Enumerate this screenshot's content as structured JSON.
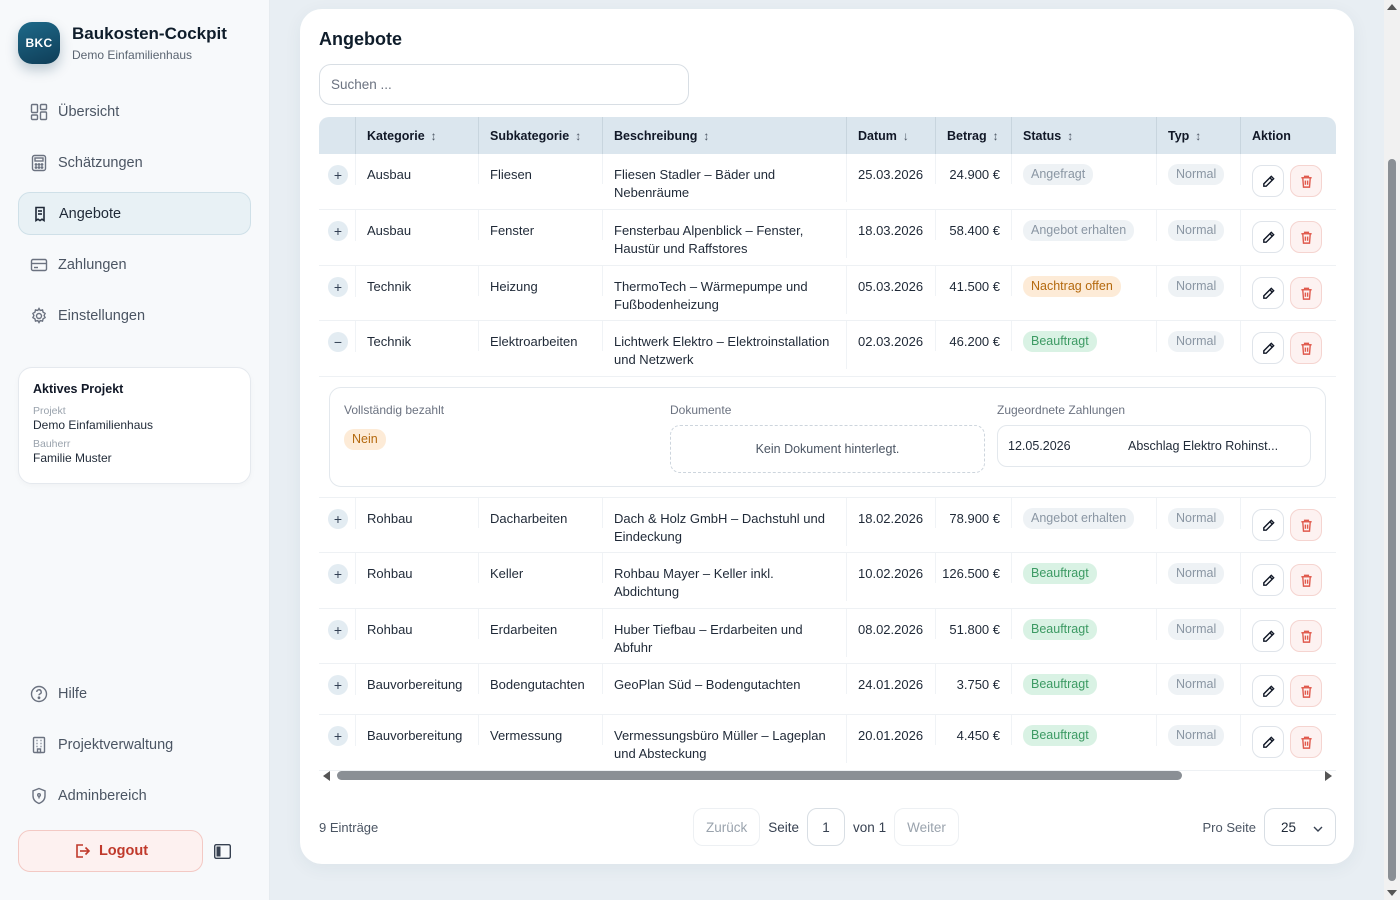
{
  "brand": {
    "logo": "BKC",
    "title": "Baukosten-Cockpit",
    "subtitle": "Demo Einfamilienhaus"
  },
  "nav": {
    "items": [
      {
        "label": "Übersicht",
        "icon": "dashboard-icon"
      },
      {
        "label": "Schätzungen",
        "icon": "calculator-icon"
      },
      {
        "label": "Angebote",
        "icon": "receipt-icon",
        "active": true
      },
      {
        "label": "Zahlungen",
        "icon": "card-icon"
      },
      {
        "label": "Einstellungen",
        "icon": "gear-icon"
      }
    ],
    "bottom": [
      {
        "label": "Hilfe",
        "icon": "help-icon"
      },
      {
        "label": "Projektverwaltung",
        "icon": "building-icon"
      },
      {
        "label": "Adminbereich",
        "icon": "shield-icon"
      }
    ],
    "logout": "Logout"
  },
  "project": {
    "title": "Aktives Projekt",
    "project_label": "Projekt",
    "project_value": "Demo Einfamilienhaus",
    "owner_label": "Bauherr",
    "owner_value": "Familie Muster"
  },
  "page": {
    "title": "Angebote",
    "search_placeholder": "Suchen ..."
  },
  "table": {
    "headers": [
      "Kategorie",
      "Subkategorie",
      "Beschreibung",
      "Datum",
      "Betrag",
      "Status",
      "Typ",
      "Aktion"
    ],
    "rows_before": [
      {
        "kategorie": "Ausbau",
        "sub": "Fliesen",
        "desc1": "Fliesen Stadler – Bäder und",
        "desc2": "Nebenräume",
        "datum": "25.03.2026",
        "betrag": "24.900 €",
        "status": "Angefragt",
        "typ": "Normal",
        "expander": "+"
      },
      {
        "kategorie": "Ausbau",
        "sub": "Fenster",
        "desc1": "Fensterbau Alpenblick – Fenster,",
        "desc2": "Haustür und Raffstores",
        "datum": "18.03.2026",
        "betrag": "58.400 €",
        "status": "Angebot erhalten",
        "typ": "Normal",
        "expander": "+"
      },
      {
        "kategorie": "Technik",
        "sub": "Heizung",
        "desc1": "ThermoTech – Wärmepumpe und",
        "desc2": "Fußbodenheizung",
        "datum": "05.03.2026",
        "betrag": "41.500 €",
        "status": "Nachtrag offen",
        "typ": "Normal",
        "expander": "+"
      },
      {
        "kategorie": "Technik",
        "sub": "Elektroarbeiten",
        "desc1": "Lichtwerk Elektro – Elektroinstallation",
        "desc2": "und Netzwerk",
        "datum": "02.03.2026",
        "betrag": "46.200 €",
        "status": "Beauftragt",
        "typ": "Normal",
        "expander": "−"
      }
    ],
    "detail": {
      "paid_label": "Vollständig bezahlt",
      "paid_value": "Nein",
      "docs_label": "Dokumente",
      "docs_empty": "Kein Dokument hinterlegt.",
      "payments_label": "Zugeordnete Zahlungen",
      "payment_date": "12.05.2026",
      "payment_desc": "Abschlag Elektro Rohinst..."
    },
    "rows_after": [
      {
        "kategorie": "Rohbau",
        "sub": "Dacharbeiten",
        "desc1": "Dach & Holz GmbH – Dachstuhl und",
        "desc2": "Eindeckung",
        "datum": "18.02.2026",
        "betrag": "78.900 €",
        "status": "Angebot erhalten",
        "typ": "Normal",
        "expander": "+"
      },
      {
        "kategorie": "Rohbau",
        "sub": "Keller",
        "desc1": "Rohbau Mayer – Keller inkl.",
        "desc2": "Abdichtung",
        "datum": "10.02.2026",
        "betrag": "126.500 €",
        "status": "Beauftragt",
        "typ": "Normal",
        "expander": "+"
      },
      {
        "kategorie": "Rohbau",
        "sub": "Erdarbeiten",
        "desc1": "Huber Tiefbau – Erdarbeiten und",
        "desc2": "Abfuhr",
        "datum": "08.02.2026",
        "betrag": "51.800 €",
        "status": "Beauftragt",
        "typ": "Normal",
        "expander": "+"
      },
      {
        "kategorie": "Bauvorbereitung",
        "sub": "Bodengutachten",
        "desc1": "GeoPlan Süd – Bodengutachten",
        "desc2": "",
        "datum": "24.01.2026",
        "betrag": "3.750 €",
        "status": "Beauftragt",
        "typ": "Normal",
        "expander": "+"
      },
      {
        "kategorie": "Bauvorbereitung",
        "sub": "Vermessung",
        "desc1": "Vermessungsbüro Müller – Lageplan",
        "desc2": "und Absteckung",
        "datum": "20.01.2026",
        "betrag": "4.450 €",
        "status": "Beauftragt",
        "typ": "Normal",
        "expander": "+"
      }
    ]
  },
  "status_colors": {
    "Angefragt": "grey",
    "Angebot erhalten": "grey",
    "Nachtrag offen": "orange",
    "Beauftragt": "green"
  },
  "footer": {
    "count": "9 Einträge",
    "prev": "Zurück",
    "page_label": "Seite",
    "page_value": "1",
    "of_label": "von 1",
    "next": "Weiter",
    "per_page_label": "Pro Seite",
    "per_page_value": "25"
  }
}
